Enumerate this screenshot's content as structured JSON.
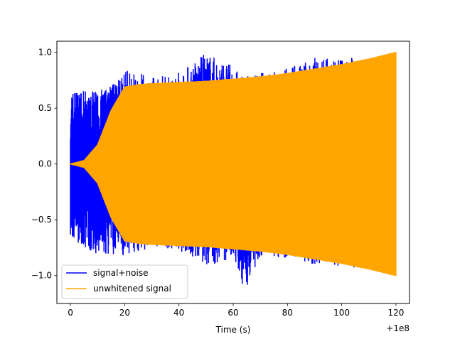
{
  "chart_data": {
    "type": "line",
    "title": "",
    "xlabel": "Time (s)",
    "ylabel": "",
    "x_offset_label": "+1e8",
    "xlim": [
      -5,
      125
    ],
    "ylim": [
      -1.25,
      1.1
    ],
    "x_ticks": [
      0,
      20,
      40,
      60,
      80,
      100,
      120
    ],
    "x_tick_labels": [
      "0",
      "20",
      "40",
      "60",
      "80",
      "100",
      "120"
    ],
    "y_ticks": [
      -1.0,
      -0.5,
      0.0,
      0.5,
      1.0
    ],
    "y_tick_labels": [
      "−1.0",
      "−0.5",
      "0.0",
      "0.5",
      "1.0"
    ],
    "grid": false,
    "legend_position": "lower-left",
    "series": [
      {
        "name": "signal+noise",
        "color": "#0000ff",
        "x": [
          0,
          10,
          20,
          30,
          40,
          50,
          60,
          64,
          70,
          80,
          90,
          100,
          110,
          120
        ],
        "upper": [
          0.66,
          0.65,
          0.85,
          0.78,
          0.83,
          1.0,
          0.88,
          0.78,
          0.82,
          0.86,
          0.96,
          0.97,
          0.95,
          0.98
        ],
        "lower": [
          -0.66,
          -0.82,
          -0.82,
          -0.75,
          -0.78,
          -0.92,
          -0.85,
          -1.15,
          -0.83,
          -0.85,
          -0.9,
          -0.92,
          -0.95,
          -0.98
        ]
      },
      {
        "name": "unwhitened signal",
        "color": "#ffa500",
        "x": [
          0,
          5,
          10,
          15,
          20,
          25,
          30,
          40,
          50,
          60,
          70,
          80,
          90,
          100,
          110,
          120
        ],
        "upper": [
          0.0,
          0.03,
          0.17,
          0.48,
          0.69,
          0.71,
          0.72,
          0.73,
          0.74,
          0.76,
          0.78,
          0.81,
          0.85,
          0.89,
          0.94,
          1.0
        ],
        "lower": [
          0.0,
          -0.03,
          -0.17,
          -0.48,
          -0.69,
          -0.71,
          -0.72,
          -0.73,
          -0.74,
          -0.76,
          -0.78,
          -0.81,
          -0.85,
          -0.89,
          -0.94,
          -1.0
        ]
      }
    ]
  }
}
